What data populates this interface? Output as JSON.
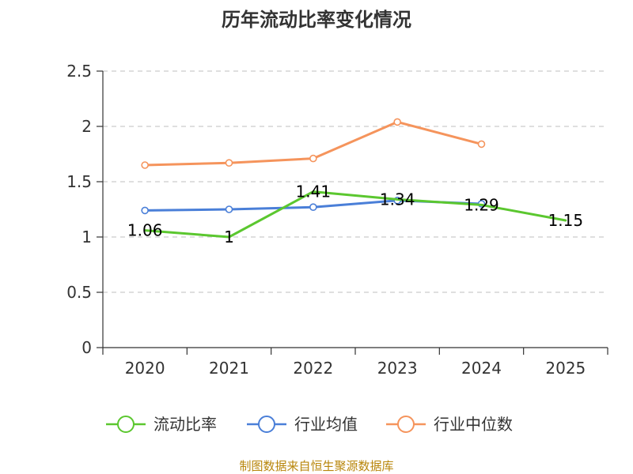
{
  "chart_data": {
    "type": "line",
    "title": "历年流动比率变化情况",
    "categories": [
      "2020",
      "2021",
      "2022",
      "2023",
      "2024",
      "2025"
    ],
    "ylim": [
      0,
      2.5
    ],
    "yticks": [
      "0",
      "0.5",
      "1",
      "1.5",
      "2",
      "2.5"
    ],
    "ytick_values": [
      0,
      0.5,
      1,
      1.5,
      2,
      2.5
    ],
    "grid": true,
    "legend_position": "bottom",
    "series": [
      {
        "name": "流动比率",
        "color": "#5bc72f",
        "values": [
          1.06,
          1.0,
          1.41,
          1.34,
          1.29,
          1.15
        ],
        "labels": [
          "1.06",
          "1",
          "1.41",
          "1.34",
          "1.29",
          "1.15"
        ],
        "show_labels": true,
        "show_markers": false
      },
      {
        "name": "行业均值",
        "color": "#4a7fd8",
        "values": [
          1.24,
          1.25,
          1.27,
          1.33,
          1.3,
          null
        ],
        "show_labels": false,
        "show_markers": true
      },
      {
        "name": "行业中位数",
        "color": "#f5945c",
        "values": [
          1.65,
          1.67,
          1.71,
          2.04,
          1.84,
          null
        ],
        "show_labels": false,
        "show_markers": true
      }
    ],
    "source": "制图数据来自恒生聚源数据库"
  }
}
